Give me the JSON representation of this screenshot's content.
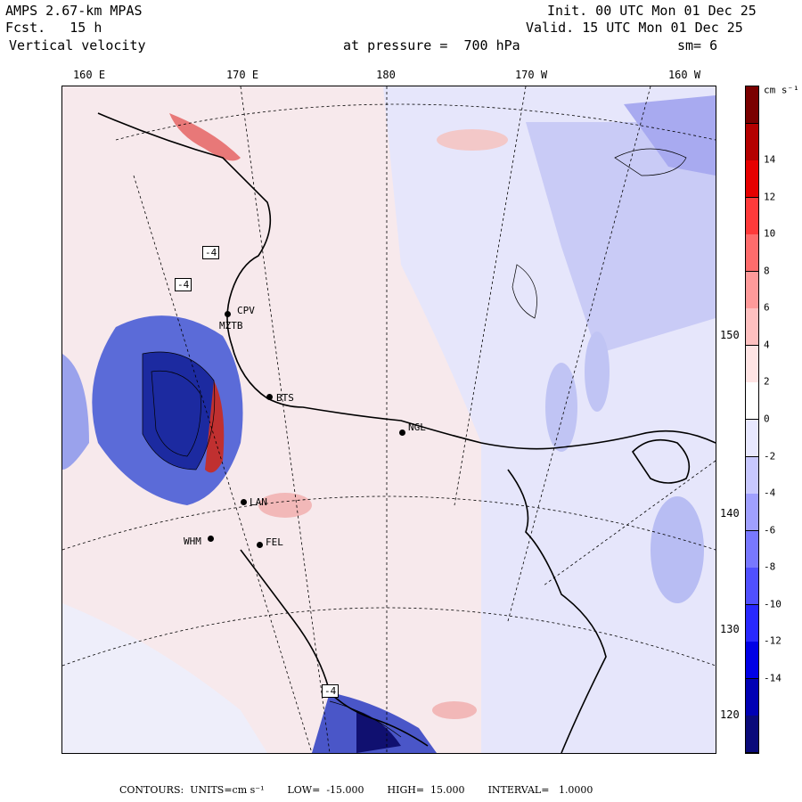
{
  "header": {
    "model": "AMPS 2.67-km MPAS",
    "fcst_label": "Fcst.",
    "fcst_value": "15 h",
    "field": "Vertical velocity",
    "init": "Init. 00 UTC Mon 01 Dec 25",
    "valid": "Valid. 15 UTC Mon 01 Dec 25",
    "level": "at pressure =  700 hPa",
    "smoothing": "sm= 6"
  },
  "map": {
    "lon_labels": [
      "160 E",
      "170 E",
      "180",
      "170 W",
      "160 W"
    ],
    "lat_labels": [
      "150 W",
      "140 W",
      "130 W",
      "120 W"
    ],
    "stations": [
      "CPV",
      "MZTB",
      "BTS",
      "NGL",
      "LAN",
      "WHM",
      "FEL"
    ],
    "contour_labels": [
      "-4",
      "-4",
      "-4"
    ]
  },
  "colorbar": {
    "units": "cm s⁻¹",
    "ticks": [
      "14",
      "12",
      "10",
      "8",
      "6",
      "4",
      "2",
      "0",
      "-2",
      "-4",
      "-6",
      "-8",
      "-10",
      "-12",
      "-14"
    ],
    "colors": [
      "#0a0a7a",
      "#0000b4",
      "#0000e6",
      "#2828ff",
      "#5050ff",
      "#7878ff",
      "#a0a0ff",
      "#c8c8ff",
      "#e8e8ff",
      "#ffffff",
      "#ffe4e4",
      "#ffc0c0",
      "#ff9a9a",
      "#ff6c6c",
      "#ff3a3a",
      "#e60000",
      "#b40000",
      "#7a0000"
    ]
  },
  "footer": {
    "contours": "CONTOURS:  UNITS=cm s⁻¹",
    "low": "LOW=  -15.000",
    "high": "HIGH=  15.000",
    "interval": "INTERVAL=   1.0000"
  }
}
